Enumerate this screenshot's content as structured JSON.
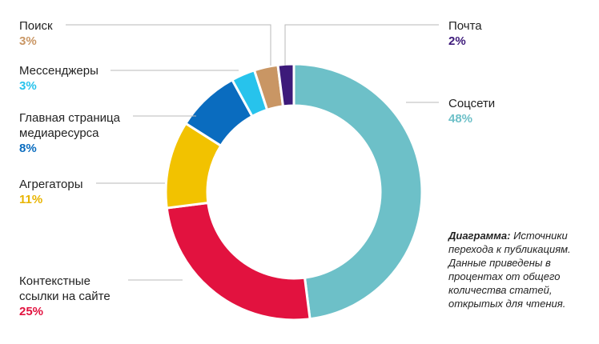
{
  "chart_data": {
    "type": "pie",
    "variant": "donut",
    "title": "",
    "slices": [
      {
        "label": "Соцсети",
        "value": 48,
        "value_label": "48%",
        "color": "#6dc0c8"
      },
      {
        "label": "Контекстные ссылки на сайте",
        "value": 25,
        "value_label": "25%",
        "color": "#e2123f"
      },
      {
        "label": "Агрегаторы",
        "value": 11,
        "value_label": "11%",
        "color": "#f2c200"
      },
      {
        "label": "Главная страница медиаресурса",
        "value": 8,
        "value_label": "8%",
        "color": "#0a6cbf"
      },
      {
        "label": "Мессенджеры",
        "value": 3,
        "value_label": "3%",
        "color": "#27c3ec"
      },
      {
        "label": "Поиск",
        "value": 3,
        "value_label": "3%",
        "color": "#c99664"
      },
      {
        "label": "Почта",
        "value": 2,
        "value_label": "2%",
        "color": "#3d1a7a"
      }
    ]
  },
  "labels": {
    "social": {
      "lines": [
        "Соцсети"
      ],
      "pct": "48%"
    },
    "context": {
      "lines": [
        "Контекстные",
        "ссылки на сайте"
      ],
      "pct": "25%"
    },
    "aggregators": {
      "lines": [
        "Агрегаторы"
      ],
      "pct": "11%"
    },
    "homepage": {
      "lines": [
        "Главная страница",
        "медиаресурса"
      ],
      "pct": "8%"
    },
    "messengers": {
      "lines": [
        "Мессенджеры"
      ],
      "pct": "3%"
    },
    "search": {
      "lines": [
        "Поиск"
      ],
      "pct": "3%"
    },
    "mail": {
      "lines": [
        "Почта"
      ],
      "pct": "2%"
    }
  },
  "caption": {
    "bold": "Диаграмма:",
    "text": " Источники перехода к публикациям. Данные приведены в процентах от общего количества статей, открытых для чтения."
  }
}
